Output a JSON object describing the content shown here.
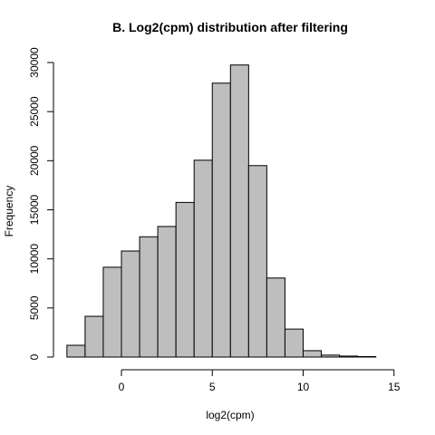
{
  "chart_data": {
    "type": "bar",
    "title": "B. Log2(cpm) distribution after filtering",
    "xlabel": "log2(cpm)",
    "ylabel": "Frequency",
    "xlim": [
      -3,
      15
    ],
    "ylim": [
      0,
      30000
    ],
    "x_ticks": [
      0,
      5,
      10,
      15
    ],
    "y_ticks": [
      0,
      5000,
      10000,
      15000,
      20000,
      25000,
      30000
    ],
    "bin_edges": [
      -3,
      -2,
      -1,
      0,
      1,
      2,
      3,
      4,
      5,
      6,
      7,
      8,
      9,
      10,
      11,
      12,
      13,
      14
    ],
    "values": [
      1200,
      4150,
      9150,
      10800,
      12250,
      13300,
      15750,
      20050,
      27900,
      29750,
      19500,
      8050,
      2850,
      650,
      200,
      100,
      50
    ],
    "grid": false,
    "bar_color": "#bebebe"
  }
}
